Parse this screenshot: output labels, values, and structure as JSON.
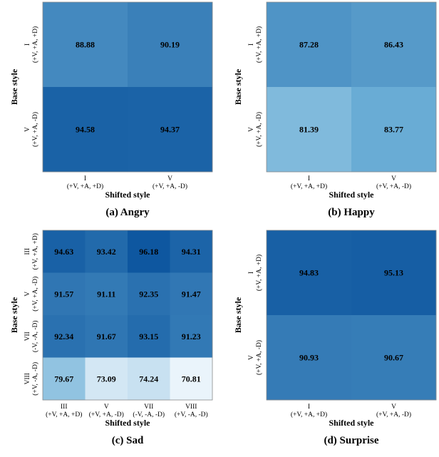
{
  "colors": {
    "scale_low": "#f2f8fd",
    "scale_high": "#08519c",
    "frame": "#8a8a8a"
  },
  "chart_data": [
    {
      "type": "heatmap",
      "caption": "(a) Angry",
      "xlabel": "Shifted style",
      "ylabel": "Base style",
      "x_ticks": [
        [
          "I",
          "(+V, +A, +D)"
        ],
        [
          "V",
          "(+V, +A, -D)"
        ]
      ],
      "y_ticks": [
        [
          "I",
          "(+V, +A, +D)"
        ],
        [
          "V",
          "(+V, +A, -D)"
        ]
      ],
      "values": [
        [
          88.88,
          90.19
        ],
        [
          94.58,
          94.37
        ]
      ],
      "vmin": 70,
      "vmax": 97
    },
    {
      "type": "heatmap",
      "caption": "(b) Happy",
      "xlabel": "Shifted style",
      "ylabel": "Base style",
      "x_ticks": [
        [
          "I",
          "(+V, +A, +D)"
        ],
        [
          "V",
          "(+V, +A, -D)"
        ]
      ],
      "y_ticks": [
        [
          "I",
          "(+V, +A, +D)"
        ],
        [
          "V",
          "(+V, +A, -D)"
        ]
      ],
      "values": [
        [
          87.28,
          86.43
        ],
        [
          81.39,
          83.77
        ]
      ],
      "vmin": 70,
      "vmax": 97
    },
    {
      "type": "heatmap",
      "caption": "(c) Sad",
      "xlabel": "Shifted style",
      "ylabel": "Base style",
      "x_ticks": [
        [
          "III",
          "(+V, +A, +D)"
        ],
        [
          "V",
          "(+V, +A, -D)"
        ],
        [
          "VII",
          "(-V, -A, -D)"
        ],
        [
          "VIII",
          "(+V, -A, -D)"
        ]
      ],
      "y_ticks": [
        [
          "III",
          "(+V, +A, +D)"
        ],
        [
          "V",
          "(+V, +A, -D)"
        ],
        [
          "VII",
          "(-V, -A, -D)"
        ],
        [
          "VIII",
          "(+V, -A, -D)"
        ]
      ],
      "values": [
        [
          94.63,
          93.42,
          96.18,
          94.31
        ],
        [
          91.57,
          91.11,
          92.35,
          91.47
        ],
        [
          92.34,
          91.67,
          93.15,
          91.23
        ],
        [
          79.67,
          73.09,
          74.24,
          70.81
        ]
      ],
      "vmin": 70,
      "vmax": 97
    },
    {
      "type": "heatmap",
      "caption": "(d) Surprise",
      "xlabel": "Shifted style",
      "ylabel": "Base style",
      "x_ticks": [
        [
          "I",
          "(+V, +A, +D)"
        ],
        [
          "V",
          "(+V, +A, -D)"
        ]
      ],
      "y_ticks": [
        [
          "I",
          "(+V, +A, +D)"
        ],
        [
          "V",
          "(+V, +A, -D)"
        ]
      ],
      "values": [
        [
          94.83,
          95.13
        ],
        [
          90.93,
          90.67
        ]
      ],
      "vmin": 70,
      "vmax": 97
    }
  ]
}
